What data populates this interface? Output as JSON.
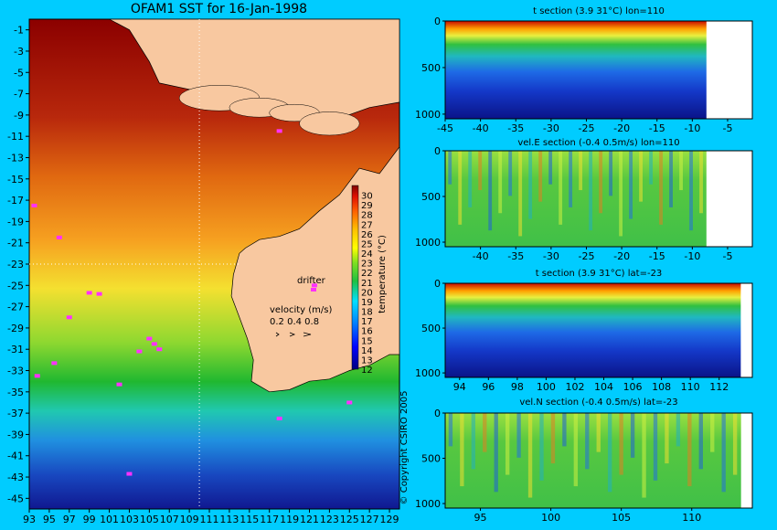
{
  "map": {
    "title": "OFAM1 SST for 16-Jan-1998",
    "lat_ticks": [
      -1,
      -3,
      -5,
      -7,
      -9,
      -11,
      -13,
      -15,
      -17,
      -19,
      -21,
      -23,
      -25,
      -27,
      -29,
      -31,
      -33,
      -35,
      -37,
      -39,
      -41,
      -43,
      -45
    ],
    "lon_ticks": [
      93,
      95,
      97,
      99,
      101,
      103,
      105,
      107,
      109,
      111,
      113,
      115,
      117,
      119,
      121,
      123,
      125,
      127,
      129
    ],
    "xlim": [
      93,
      130
    ],
    "ylim": [
      -46,
      0
    ],
    "colorbar": {
      "label": "temperature (°C)",
      "ticks": [
        30,
        29,
        28,
        27,
        26,
        25,
        24,
        23,
        22,
        21,
        20,
        19,
        18,
        17,
        16,
        15,
        14,
        13,
        12
      ],
      "range": [
        12,
        31
      ]
    },
    "legend": {
      "drifter_label": "drifter",
      "velocity_title": "velocity (m/s)",
      "velocity_scale": "0.2 0.4 0.8"
    },
    "section_lines": {
      "lon": 110,
      "lat": -23
    },
    "drifters": [
      [
        93.5,
        -17.5
      ],
      [
        96,
        -20.5
      ],
      [
        99,
        -25.7
      ],
      [
        100,
        -25.8
      ],
      [
        97,
        -28
      ],
      [
        105,
        -30
      ],
      [
        105.5,
        -30.5
      ],
      [
        104,
        -31.2
      ],
      [
        106,
        -31
      ],
      [
        93.8,
        -33.5
      ],
      [
        95.5,
        -32.3
      ],
      [
        102,
        -34.3
      ],
      [
        103,
        -42.7
      ],
      [
        118,
        -37.5
      ],
      [
        125,
        -36
      ],
      [
        121.5,
        -25
      ],
      [
        118,
        -10.5
      ]
    ],
    "copyright": "© Copyright CSIRO 2005"
  },
  "chart_data": [
    {
      "type": "heatmap",
      "title": "t section (3.9      31°C) lon=110",
      "x_ticks": [
        -45,
        -40,
        -35,
        -30,
        -25,
        -20,
        -15,
        -10,
        -5
      ],
      "xlim": [
        -45,
        -1.5
      ],
      "y_ticks": [
        0,
        500,
        1000
      ],
      "ylim": [
        1050,
        0
      ],
      "land_from_x": -8
    },
    {
      "type": "heatmap",
      "title": "vel.E section (-0.4      0.5m/s) lon=110",
      "x_ticks": [
        -40,
        -35,
        -30,
        -25,
        -20,
        -15,
        -10,
        -5
      ],
      "xlim": [
        -45,
        -1.5
      ],
      "y_ticks": [
        0,
        500,
        1000
      ],
      "ylim": [
        1050,
        0
      ],
      "land_from_x": -8
    },
    {
      "type": "heatmap",
      "title": "t section (3.9      31°C) lat=-23",
      "x_ticks": [
        94,
        96,
        98,
        100,
        102,
        104,
        106,
        108,
        110,
        112
      ],
      "xlim": [
        93,
        114.3
      ],
      "y_ticks": [
        0,
        500,
        1000
      ],
      "ylim": [
        1050,
        0
      ],
      "land_from_x": 113.5
    },
    {
      "type": "heatmap",
      "title": "vel.N section (-0.4      0.5m/s) lat=-23",
      "x_ticks": [
        95,
        100,
        105,
        110
      ],
      "xlim": [
        92.5,
        114.3
      ],
      "y_ticks": [
        0,
        500,
        1000
      ],
      "ylim": [
        1050,
        0
      ],
      "land_from_x": 113.5
    }
  ]
}
